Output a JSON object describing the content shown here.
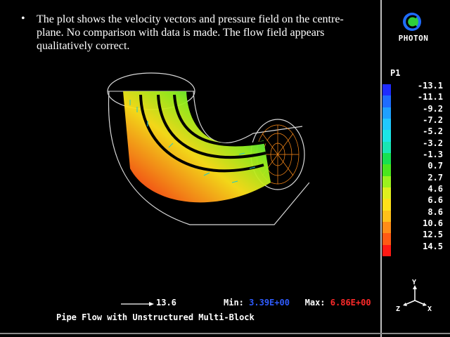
{
  "slide": {
    "bullet": "•",
    "caption": "The plot shows the velocity vectors and pressure field on the centre-plane. No comparison with data is made. The flow field appears qualitatively correct."
  },
  "logo": {
    "text": "PHOTON",
    "icon": "photon-logo-icon"
  },
  "legend": {
    "title": "P1",
    "labels": [
      "-13.1",
      "-11.1",
      "-9.2",
      "-7.2",
      "-5.2",
      "-3.2",
      "-1.3",
      "0.7",
      "2.7",
      "4.6",
      "6.6",
      "8.6",
      "10.6",
      "12.5",
      "14.5"
    ],
    "colors": [
      "#1f2cff",
      "#1f6cff",
      "#1fa0ff",
      "#21c8ff",
      "#1ce6e6",
      "#19e6b4",
      "#18e050",
      "#4be61e",
      "#9bf21e",
      "#dff01e",
      "#ffe21a",
      "#ffc01a",
      "#ff8c18",
      "#ff5a14",
      "#ff1a14"
    ]
  },
  "footer": {
    "vector_scale": "13.6",
    "min_label": "Min:",
    "min_value": "3.39E+00",
    "max_label": "Max:",
    "max_value": "6.86E+00",
    "title": "Pipe Flow with Unstructured Multi-Block"
  },
  "axes": {
    "y": "Y",
    "z": "Z",
    "x": "X"
  }
}
